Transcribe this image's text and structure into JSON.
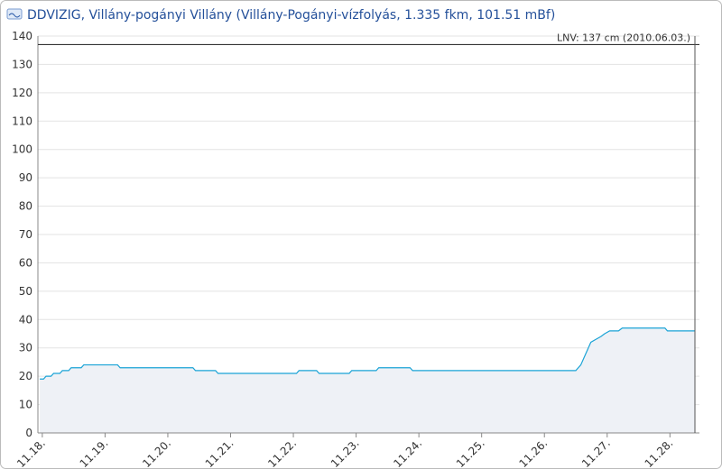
{
  "chart_data": {
    "type": "line",
    "title": "DDVIZIG, Villány-pogányi Villány (Villány-Pogányi-vízfolyás, 1.335 fkm, 101.51 mBf)",
    "x": [
      -0.04,
      0.02,
      0.06,
      0.14,
      0.18,
      0.28,
      0.32,
      0.42,
      0.46,
      0.62,
      0.66,
      1.2,
      1.24,
      2.4,
      2.44,
      2.76,
      2.8,
      4.05,
      4.09,
      4.37,
      4.41,
      4.89,
      4.93,
      5.32,
      5.36,
      5.86,
      5.9,
      8.5,
      8.58,
      8.66,
      8.74,
      8.82,
      8.9,
      8.96,
      9.04,
      9.18,
      9.24,
      9.92,
      9.96,
      10.4
    ],
    "series": [
      {
        "color": "#1aa3d6",
        "values": [
          19,
          19,
          20,
          20,
          21,
          21,
          22,
          22,
          23,
          23,
          24,
          24,
          23,
          23,
          22,
          22,
          21,
          21,
          22,
          22,
          21,
          21,
          22,
          22,
          23,
          23,
          22,
          22,
          24,
          28,
          32,
          33,
          34,
          35,
          36,
          36,
          37,
          37,
          36,
          36
        ]
      }
    ],
    "xlim": [
      -0.07,
      10.47
    ],
    "xticks": [
      {
        "value": 0,
        "label": "11.18."
      },
      {
        "value": 1,
        "label": "11.19."
      },
      {
        "value": 2,
        "label": "11.20."
      },
      {
        "value": 3,
        "label": "11.21."
      },
      {
        "value": 4,
        "label": "11.22."
      },
      {
        "value": 5,
        "label": "11.23."
      },
      {
        "value": 6,
        "label": "11.24."
      },
      {
        "value": 7,
        "label": "11.25."
      },
      {
        "value": 8,
        "label": "11.26."
      },
      {
        "value": 9,
        "label": "11.27."
      },
      {
        "value": 10,
        "label": "11.28."
      }
    ],
    "ylim": [
      0,
      140
    ],
    "yticks": [
      0,
      10,
      20,
      30,
      40,
      50,
      60,
      70,
      80,
      90,
      100,
      110,
      120,
      130,
      140
    ],
    "grid": true,
    "threshold": {
      "value": 137,
      "label": "LNV: 137 cm (2010.06.03.)",
      "color": "#333333"
    }
  }
}
